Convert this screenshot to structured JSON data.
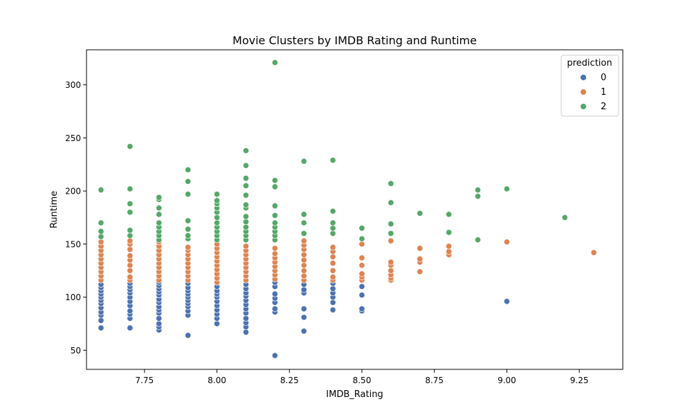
{
  "chart_data": {
    "type": "scatter",
    "title": "Movie Clusters by IMDB Rating and Runtime",
    "xlabel": "IMDB_Rating",
    "ylabel": "Runtime",
    "xlim": [
      7.55,
      9.4
    ],
    "ylim": [
      32,
      333
    ],
    "x_ticks": [
      7.75,
      8.0,
      8.25,
      8.5,
      8.75,
      9.0,
      9.25
    ],
    "x_tick_labels": [
      "7.75",
      "8.00",
      "8.25",
      "8.50",
      "8.75",
      "9.00",
      "9.25"
    ],
    "y_ticks": [
      50,
      100,
      150,
      200,
      250,
      300
    ],
    "y_tick_labels": [
      "50",
      "100",
      "150",
      "200",
      "250",
      "300"
    ],
    "grid": false,
    "legend": {
      "title": "prediction",
      "position": "top-right"
    },
    "series": [
      {
        "name": "0",
        "color": "#4c72b0",
        "points": [
          [
            7.6,
            71
          ],
          [
            7.6,
            78
          ],
          [
            7.6,
            83
          ],
          [
            7.6,
            86
          ],
          [
            7.6,
            90
          ],
          [
            7.6,
            94
          ],
          [
            7.6,
            97
          ],
          [
            7.6,
            100
          ],
          [
            7.6,
            103
          ],
          [
            7.6,
            106
          ],
          [
            7.6,
            109
          ],
          [
            7.6,
            112
          ],
          [
            7.7,
            71
          ],
          [
            7.7,
            80
          ],
          [
            7.7,
            84
          ],
          [
            7.7,
            87
          ],
          [
            7.7,
            92
          ],
          [
            7.7,
            96
          ],
          [
            7.7,
            100
          ],
          [
            7.7,
            104
          ],
          [
            7.7,
            107
          ],
          [
            7.7,
            110
          ],
          [
            7.7,
            113
          ],
          [
            7.8,
            69
          ],
          [
            7.8,
            72
          ],
          [
            7.8,
            75
          ],
          [
            7.8,
            80
          ],
          [
            7.8,
            85
          ],
          [
            7.8,
            88
          ],
          [
            7.8,
            91
          ],
          [
            7.8,
            95
          ],
          [
            7.8,
            98
          ],
          [
            7.8,
            102
          ],
          [
            7.8,
            105
          ],
          [
            7.8,
            108
          ],
          [
            7.8,
            111
          ],
          [
            7.8,
            114
          ],
          [
            7.9,
            64
          ],
          [
            7.9,
            83
          ],
          [
            7.9,
            87
          ],
          [
            7.9,
            91
          ],
          [
            7.9,
            94
          ],
          [
            7.9,
            97
          ],
          [
            7.9,
            100
          ],
          [
            7.9,
            103
          ],
          [
            7.9,
            106
          ],
          [
            7.9,
            109
          ],
          [
            7.9,
            113
          ],
          [
            8.0,
            75
          ],
          [
            8.0,
            80
          ],
          [
            8.0,
            84
          ],
          [
            8.0,
            88
          ],
          [
            8.0,
            92
          ],
          [
            8.0,
            96
          ],
          [
            8.0,
            100
          ],
          [
            8.0,
            103
          ],
          [
            8.0,
            106
          ],
          [
            8.0,
            110
          ],
          [
            8.1,
            67
          ],
          [
            8.1,
            72
          ],
          [
            8.1,
            76
          ],
          [
            8.1,
            80
          ],
          [
            8.1,
            85
          ],
          [
            8.1,
            89
          ],
          [
            8.1,
            93
          ],
          [
            8.1,
            97
          ],
          [
            8.1,
            101
          ],
          [
            8.1,
            104
          ],
          [
            8.1,
            108
          ],
          [
            8.1,
            112
          ],
          [
            8.2,
            45
          ],
          [
            8.2,
            86
          ],
          [
            8.2,
            89
          ],
          [
            8.2,
            95
          ],
          [
            8.2,
            99
          ],
          [
            8.2,
            103
          ],
          [
            8.2,
            110
          ],
          [
            8.2,
            114
          ],
          [
            8.3,
            68
          ],
          [
            8.3,
            81
          ],
          [
            8.3,
            89
          ],
          [
            8.3,
            104
          ],
          [
            8.3,
            107
          ],
          [
            8.3,
            112
          ],
          [
            8.4,
            88
          ],
          [
            8.4,
            95
          ],
          [
            8.4,
            100
          ],
          [
            8.4,
            104
          ],
          [
            8.4,
            108
          ],
          [
            8.4,
            113
          ],
          [
            8.5,
            87
          ],
          [
            8.5,
            89
          ],
          [
            8.5,
            102
          ],
          [
            8.5,
            110
          ],
          [
            9.0,
            96
          ]
        ]
      },
      {
        "name": "1",
        "color": "#dd8452",
        "points": [
          [
            7.6,
            116
          ],
          [
            7.6,
            120
          ],
          [
            7.6,
            124
          ],
          [
            7.6,
            128
          ],
          [
            7.6,
            132
          ],
          [
            7.6,
            136
          ],
          [
            7.6,
            140
          ],
          [
            7.6,
            144
          ],
          [
            7.6,
            148
          ],
          [
            7.6,
            152
          ],
          [
            7.7,
            116
          ],
          [
            7.7,
            119
          ],
          [
            7.7,
            125
          ],
          [
            7.7,
            130
          ],
          [
            7.7,
            135
          ],
          [
            7.7,
            139
          ],
          [
            7.7,
            145
          ],
          [
            7.7,
            150
          ],
          [
            7.7,
            153
          ],
          [
            7.8,
            116
          ],
          [
            7.8,
            120
          ],
          [
            7.8,
            124
          ],
          [
            7.8,
            128
          ],
          [
            7.8,
            132
          ],
          [
            7.8,
            136
          ],
          [
            7.8,
            140
          ],
          [
            7.8,
            144
          ],
          [
            7.8,
            148
          ],
          [
            7.8,
            152
          ],
          [
            7.9,
            116
          ],
          [
            7.9,
            120
          ],
          [
            7.9,
            124
          ],
          [
            7.9,
            128
          ],
          [
            7.9,
            132
          ],
          [
            7.9,
            136
          ],
          [
            7.9,
            140
          ],
          [
            7.9,
            144
          ],
          [
            7.9,
            147
          ],
          [
            8.0,
            114
          ],
          [
            8.0,
            118
          ],
          [
            8.0,
            122
          ],
          [
            8.0,
            126
          ],
          [
            8.0,
            130
          ],
          [
            8.0,
            134
          ],
          [
            8.0,
            138
          ],
          [
            8.0,
            142
          ],
          [
            8.0,
            146
          ],
          [
            8.0,
            150
          ],
          [
            8.1,
            116
          ],
          [
            8.1,
            120
          ],
          [
            8.1,
            124
          ],
          [
            8.1,
            128
          ],
          [
            8.1,
            132
          ],
          [
            8.1,
            136
          ],
          [
            8.1,
            140
          ],
          [
            8.1,
            144
          ],
          [
            8.1,
            148
          ],
          [
            8.2,
            117
          ],
          [
            8.2,
            121
          ],
          [
            8.2,
            125
          ],
          [
            8.2,
            129
          ],
          [
            8.2,
            133
          ],
          [
            8.2,
            137
          ],
          [
            8.2,
            141
          ],
          [
            8.2,
            146
          ],
          [
            8.3,
            116
          ],
          [
            8.3,
            120
          ],
          [
            8.3,
            125
          ],
          [
            8.3,
            130
          ],
          [
            8.3,
            135
          ],
          [
            8.3,
            140
          ],
          [
            8.3,
            145
          ],
          [
            8.3,
            149
          ],
          [
            8.3,
            153
          ],
          [
            8.4,
            116
          ],
          [
            8.4,
            119
          ],
          [
            8.4,
            125
          ],
          [
            8.4,
            132
          ],
          [
            8.4,
            138
          ],
          [
            8.4,
            143
          ],
          [
            8.4,
            147
          ],
          [
            8.5,
            116
          ],
          [
            8.5,
            119
          ],
          [
            8.5,
            122
          ],
          [
            8.5,
            130
          ],
          [
            8.5,
            137
          ],
          [
            8.5,
            150
          ],
          [
            8.6,
            116
          ],
          [
            8.6,
            118
          ],
          [
            8.6,
            121
          ],
          [
            8.6,
            125
          ],
          [
            8.6,
            130
          ],
          [
            8.6,
            133
          ],
          [
            8.6,
            153
          ],
          [
            8.7,
            124
          ],
          [
            8.7,
            133
          ],
          [
            8.7,
            136
          ],
          [
            8.7,
            146
          ],
          [
            8.8,
            140
          ],
          [
            8.8,
            143
          ],
          [
            8.8,
            148
          ],
          [
            9.0,
            152
          ],
          [
            9.3,
            142
          ]
        ]
      },
      {
        "name": "2",
        "color": "#55a868",
        "points": [
          [
            7.6,
            157
          ],
          [
            7.6,
            162
          ],
          [
            7.6,
            170
          ],
          [
            7.6,
            201
          ],
          [
            7.7,
            158
          ],
          [
            7.7,
            163
          ],
          [
            7.7,
            180
          ],
          [
            7.7,
            188
          ],
          [
            7.7,
            202
          ],
          [
            7.7,
            242
          ],
          [
            7.8,
            154
          ],
          [
            7.8,
            158
          ],
          [
            7.8,
            162
          ],
          [
            7.8,
            166
          ],
          [
            7.8,
            170
          ],
          [
            7.8,
            178
          ],
          [
            7.8,
            184
          ],
          [
            7.8,
            192
          ],
          [
            7.8,
            194
          ],
          [
            7.9,
            155
          ],
          [
            7.9,
            158
          ],
          [
            7.9,
            164
          ],
          [
            7.9,
            172
          ],
          [
            7.9,
            197
          ],
          [
            7.9,
            209
          ],
          [
            7.9,
            220
          ],
          [
            8.0,
            154
          ],
          [
            8.0,
            158
          ],
          [
            8.0,
            162
          ],
          [
            8.0,
            166
          ],
          [
            8.0,
            170
          ],
          [
            8.0,
            175
          ],
          [
            8.0,
            180
          ],
          [
            8.0,
            184
          ],
          [
            8.0,
            188
          ],
          [
            8.0,
            191
          ],
          [
            8.0,
            197
          ],
          [
            8.1,
            154
          ],
          [
            8.1,
            158
          ],
          [
            8.1,
            162
          ],
          [
            8.1,
            166
          ],
          [
            8.1,
            171
          ],
          [
            8.1,
            176
          ],
          [
            8.1,
            184
          ],
          [
            8.1,
            187
          ],
          [
            8.1,
            196
          ],
          [
            8.1,
            205
          ],
          [
            8.1,
            212
          ],
          [
            8.1,
            224
          ],
          [
            8.1,
            238
          ],
          [
            8.2,
            154
          ],
          [
            8.2,
            158
          ],
          [
            8.2,
            162
          ],
          [
            8.2,
            166
          ],
          [
            8.2,
            170
          ],
          [
            8.2,
            177
          ],
          [
            8.2,
            186
          ],
          [
            8.2,
            204
          ],
          [
            8.2,
            210
          ],
          [
            8.2,
            321
          ],
          [
            8.3,
            160
          ],
          [
            8.3,
            170
          ],
          [
            8.3,
            178
          ],
          [
            8.3,
            228
          ],
          [
            8.4,
            160
          ],
          [
            8.4,
            165
          ],
          [
            8.4,
            170
          ],
          [
            8.4,
            181
          ],
          [
            8.4,
            229
          ],
          [
            8.5,
            155
          ],
          [
            8.5,
            165
          ],
          [
            8.6,
            160
          ],
          [
            8.6,
            169
          ],
          [
            8.6,
            189
          ],
          [
            8.6,
            207
          ],
          [
            8.7,
            179
          ],
          [
            8.8,
            161
          ],
          [
            8.8,
            178
          ],
          [
            8.9,
            154
          ],
          [
            8.9,
            195
          ],
          [
            8.9,
            201
          ],
          [
            9.0,
            202
          ],
          [
            9.2,
            175
          ]
        ]
      }
    ]
  }
}
